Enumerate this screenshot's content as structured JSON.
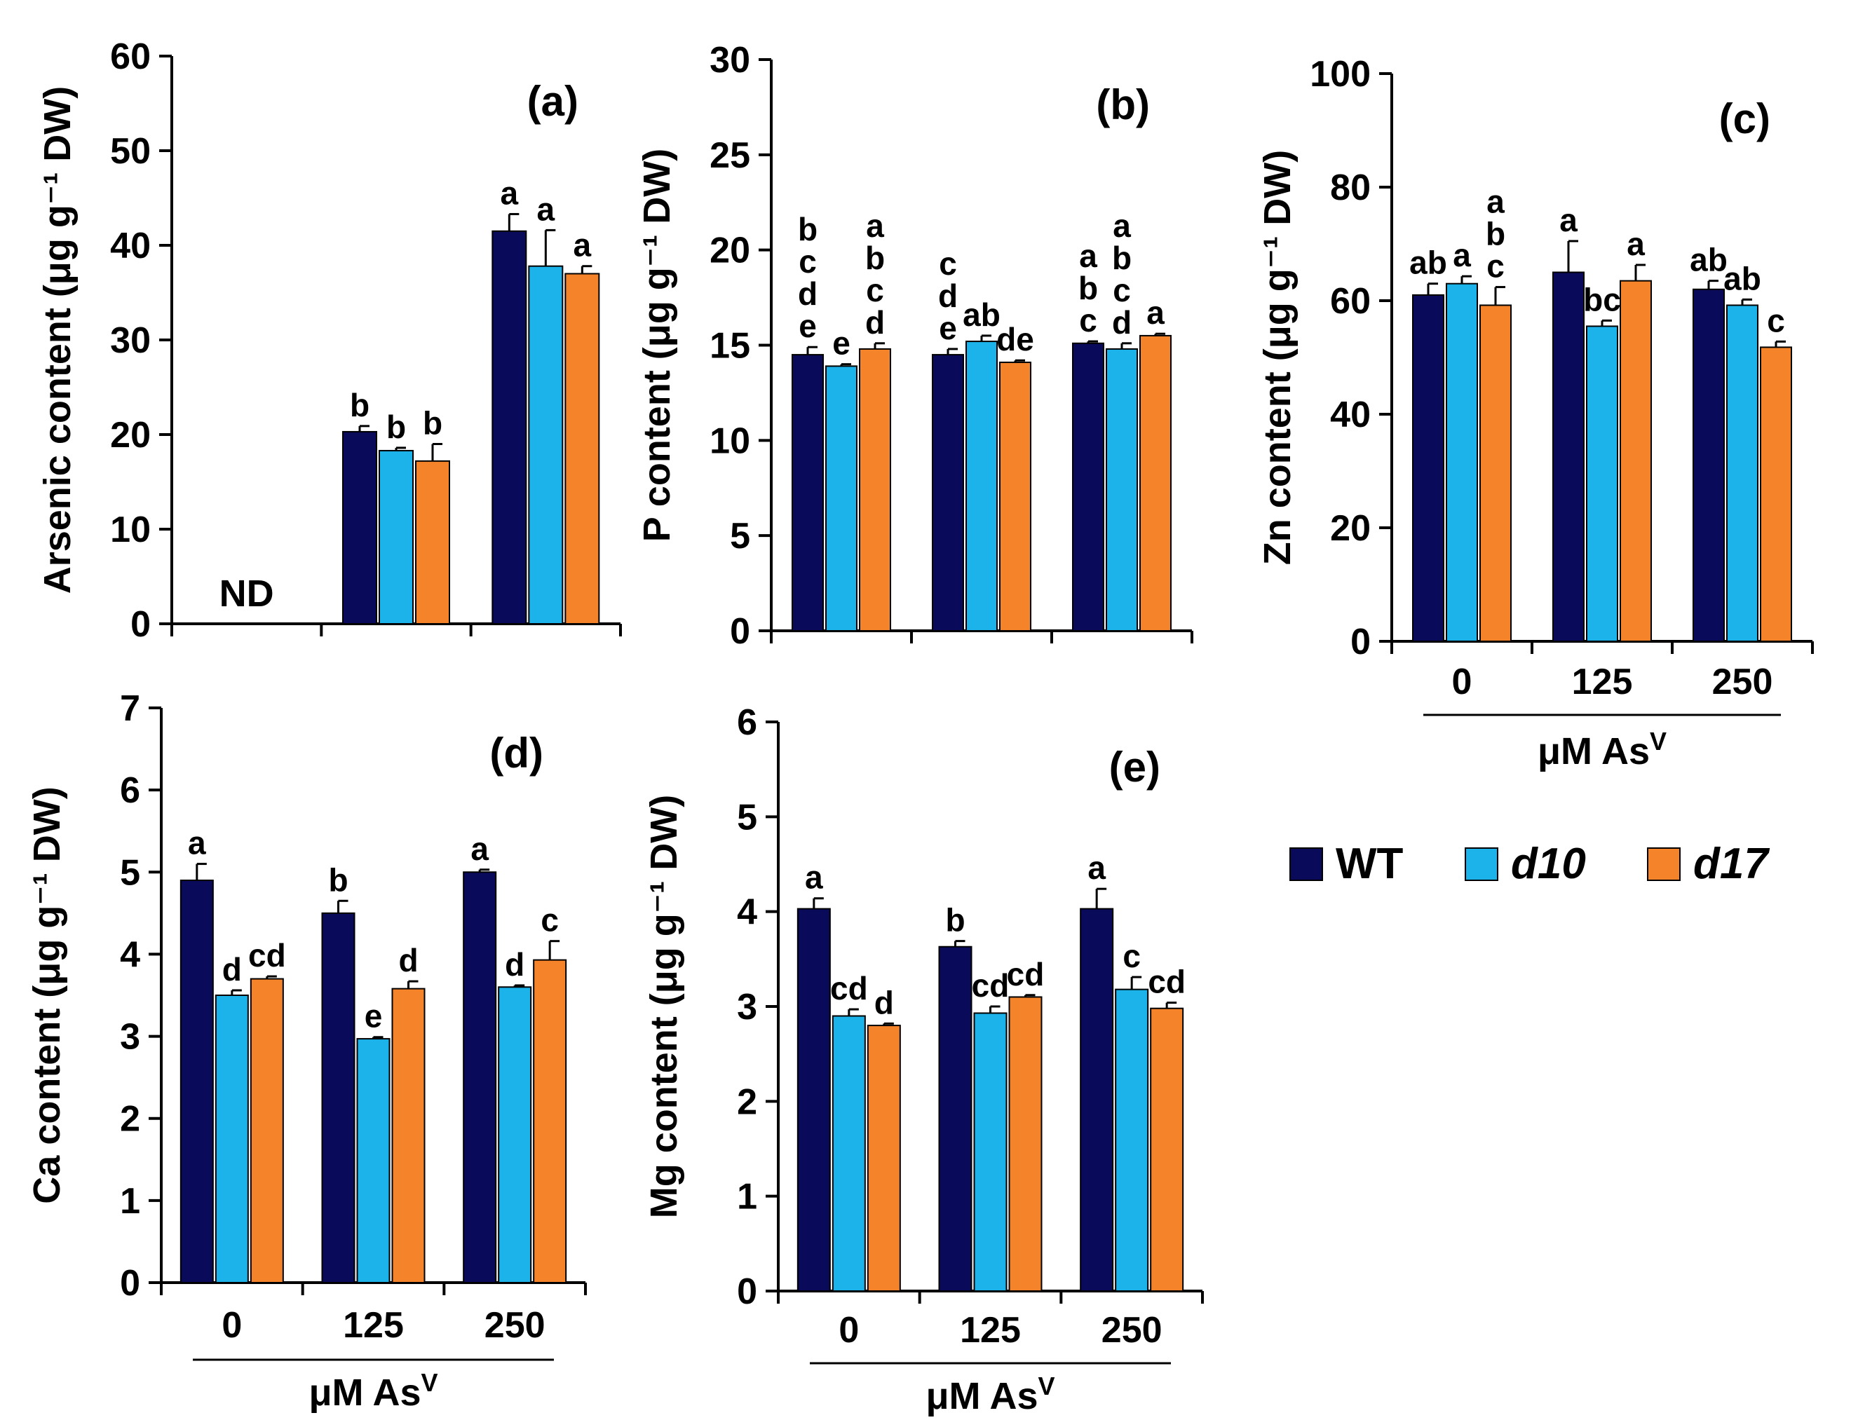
{
  "colors": {
    "WT": "#0a0a5a",
    "d10": "#1cb3ea",
    "d17": "#f5832a"
  },
  "legend": [
    {
      "key": "WT",
      "label": "WT",
      "italic": false
    },
    {
      "key": "d10",
      "label": "d10",
      "italic": true
    },
    {
      "key": "d17",
      "label": "d17",
      "italic": true
    }
  ],
  "x_axis": {
    "title": "μM As",
    "title_superscript": "V"
  },
  "chart_data": [
    {
      "type": "bar",
      "panel": "(a)",
      "ylabel": "Arsenic content (μg g⁻¹ DW)",
      "ylim": [
        0,
        60
      ],
      "yticks": [
        0,
        10,
        20,
        30,
        40,
        50,
        60
      ],
      "categories": [
        "0",
        "125",
        "250"
      ],
      "show_categories": false,
      "series": [
        {
          "name": "WT",
          "values": [
            null,
            20.3,
            41.5
          ],
          "errors": [
            null,
            0.6,
            1.8
          ],
          "labels": [
            "",
            "b",
            "a"
          ]
        },
        {
          "name": "d10",
          "values": [
            null,
            18.3,
            37.8
          ],
          "errors": [
            null,
            0.3,
            3.8
          ],
          "labels": [
            "",
            "b",
            "a"
          ]
        },
        {
          "name": "d17",
          "values": [
            null,
            17.2,
            37.0
          ],
          "errors": [
            null,
            1.8,
            0.8
          ],
          "labels": [
            "",
            "b",
            "a"
          ]
        }
      ],
      "annotations": [
        {
          "text": "ND",
          "category": "0"
        }
      ]
    },
    {
      "type": "bar",
      "panel": "(b)",
      "ylabel": "P content (μg g⁻¹ DW)",
      "ylim": [
        0,
        30
      ],
      "yticks": [
        0,
        5,
        10,
        15,
        20,
        25,
        30
      ],
      "categories": [
        "0",
        "125",
        "250"
      ],
      "show_categories": false,
      "series": [
        {
          "name": "WT",
          "values": [
            14.5,
            14.5,
            15.1
          ],
          "errors": [
            0.4,
            0.3,
            0.1
          ],
          "labels": [
            "bcde",
            "cde",
            "abc"
          ]
        },
        {
          "name": "d10",
          "values": [
            13.9,
            15.2,
            14.8
          ],
          "errors": [
            0.1,
            0.3,
            0.3
          ],
          "labels": [
            "e",
            "ab",
            "abcd"
          ]
        },
        {
          "name": "d17",
          "values": [
            14.8,
            14.1,
            15.5
          ],
          "errors": [
            0.3,
            0.1,
            0.1
          ],
          "labels": [
            "abcd",
            "de",
            "a"
          ]
        }
      ]
    },
    {
      "type": "bar",
      "panel": "(c)",
      "ylabel": "Zn content (μg g⁻¹ DW)",
      "ylim": [
        0,
        100
      ],
      "yticks": [
        0,
        20,
        40,
        60,
        80,
        100
      ],
      "categories": [
        "0",
        "125",
        "250"
      ],
      "show_categories": true,
      "series": [
        {
          "name": "WT",
          "values": [
            61.0,
            65.0,
            62.0
          ],
          "errors": [
            2.0,
            5.5,
            1.5
          ],
          "labels": [
            "ab",
            "a",
            "ab"
          ]
        },
        {
          "name": "d10",
          "values": [
            63.0,
            55.5,
            59.2
          ],
          "errors": [
            1.3,
            1.0,
            1.0
          ],
          "labels": [
            "a",
            "bc",
            "ab"
          ]
        },
        {
          "name": "d17",
          "values": [
            59.2,
            63.5,
            51.8
          ],
          "errors": [
            3.2,
            2.8,
            1.0
          ],
          "labels": [
            "abc",
            "a",
            "c"
          ]
        }
      ]
    },
    {
      "type": "bar",
      "panel": "(d)",
      "ylabel": "Ca content (μg g⁻¹ DW)",
      "ylim": [
        0,
        7
      ],
      "yticks": [
        0,
        1,
        2,
        3,
        4,
        5,
        6,
        7
      ],
      "categories": [
        "0",
        "125",
        "250"
      ],
      "show_categories": true,
      "series": [
        {
          "name": "WT",
          "values": [
            4.9,
            4.5,
            5.0
          ],
          "errors": [
            0.2,
            0.15,
            0.03
          ],
          "labels": [
            "a",
            "b",
            "a"
          ]
        },
        {
          "name": "d10",
          "values": [
            3.5,
            2.97,
            3.6
          ],
          "errors": [
            0.06,
            0.02,
            0.02
          ],
          "labels": [
            "d",
            "e",
            "d"
          ]
        },
        {
          "name": "d17",
          "values": [
            3.7,
            3.58,
            3.93
          ],
          "errors": [
            0.03,
            0.09,
            0.23
          ],
          "labels": [
            "cd",
            "d",
            "c"
          ]
        }
      ]
    },
    {
      "type": "bar",
      "panel": "(e)",
      "ylabel": "Mg content (μg g⁻¹ DW)",
      "ylim": [
        0,
        6
      ],
      "yticks": [
        0,
        1,
        2,
        3,
        4,
        5,
        6
      ],
      "categories": [
        "0",
        "125",
        "250"
      ],
      "show_categories": true,
      "series": [
        {
          "name": "WT",
          "values": [
            4.03,
            3.63,
            4.03
          ],
          "errors": [
            0.11,
            0.06,
            0.21
          ],
          "labels": [
            "a",
            "b",
            "a"
          ]
        },
        {
          "name": "d10",
          "values": [
            2.9,
            2.93,
            3.18
          ],
          "errors": [
            0.07,
            0.07,
            0.13
          ],
          "labels": [
            "cd",
            "cd",
            "c"
          ]
        },
        {
          "name": "d17",
          "values": [
            2.8,
            3.1,
            2.98
          ],
          "errors": [
            0.02,
            0.02,
            0.06
          ],
          "labels": [
            "d",
            "cd",
            "cd"
          ]
        }
      ]
    }
  ]
}
